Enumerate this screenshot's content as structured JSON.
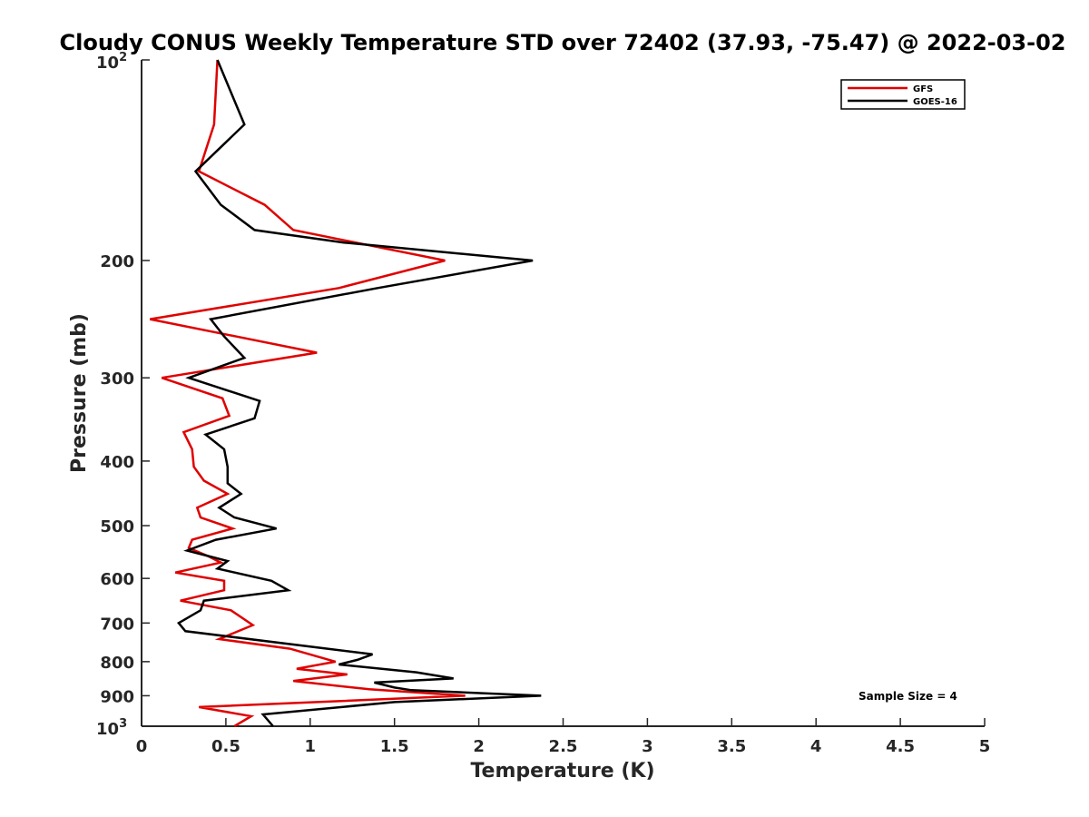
{
  "chart_data": {
    "type": "line",
    "title": "Cloudy CONUS Weekly Temperature STD over 72402 (37.93, -75.47) @ 2022-03-02",
    "xlabel": "Temperature (K)",
    "ylabel": "Pressure (mb)",
    "xlim": [
      0,
      5
    ],
    "ylim": [
      100,
      1000
    ],
    "y_scale": "log",
    "y_reversed": true,
    "x_ticks": [
      0,
      0.5,
      1,
      1.5,
      2,
      2.5,
      3,
      3.5,
      4,
      4.5,
      5
    ],
    "x_tick_labels": [
      "0",
      "0.5",
      "1",
      "1.5",
      "2",
      "2.5",
      "3",
      "3.5",
      "4",
      "4.5",
      "5"
    ],
    "y_ticks": [
      200,
      300,
      400,
      500,
      600,
      700,
      800,
      900
    ],
    "y_tick_labels": [
      "200",
      "300",
      "400",
      "500",
      "600",
      "700",
      "800",
      "900"
    ],
    "y_top_label": {
      "base": "10",
      "exp": "2"
    },
    "y_bottom_label": {
      "base": "10",
      "exp": "3"
    },
    "grid": false,
    "legend_position": "top-right",
    "annotation": "Sample Size = 4",
    "series": [
      {
        "name": "GFS",
        "color": "#e00000",
        "points": [
          [
            0.45,
            100
          ],
          [
            0.43,
            125
          ],
          [
            0.34,
            147
          ],
          [
            0.73,
            165
          ],
          [
            0.9,
            180
          ],
          [
            1.8,
            200
          ],
          [
            1.17,
            220
          ],
          [
            0.05,
            245
          ],
          [
            1.04,
            275
          ],
          [
            0.12,
            300
          ],
          [
            0.48,
            322
          ],
          [
            0.52,
            342
          ],
          [
            0.25,
            362
          ],
          [
            0.3,
            384
          ],
          [
            0.31,
            408
          ],
          [
            0.37,
            428
          ],
          [
            0.51,
            448
          ],
          [
            0.33,
            470
          ],
          [
            0.35,
            486
          ],
          [
            0.54,
            505
          ],
          [
            0.3,
            525
          ],
          [
            0.28,
            540
          ],
          [
            0.39,
            555
          ],
          [
            0.47,
            568
          ],
          [
            0.2,
            588
          ],
          [
            0.49,
            605
          ],
          [
            0.49,
            625
          ],
          [
            0.23,
            648
          ],
          [
            0.53,
            670
          ],
          [
            0.66,
            705
          ],
          [
            0.46,
            740
          ],
          [
            0.88,
            765
          ],
          [
            1.15,
            800
          ],
          [
            0.92,
            820
          ],
          [
            1.22,
            836
          ],
          [
            0.9,
            855
          ],
          [
            1.35,
            880
          ],
          [
            1.92,
            900
          ],
          [
            0.34,
            936
          ],
          [
            0.65,
            966
          ],
          [
            0.55,
            1000
          ]
        ]
      },
      {
        "name": "GOES-16",
        "color": "#000000",
        "points": [
          [
            0.45,
            100
          ],
          [
            0.61,
            125
          ],
          [
            0.32,
            147
          ],
          [
            0.47,
            165
          ],
          [
            0.67,
            180
          ],
          [
            1.2,
            188
          ],
          [
            2.32,
            200
          ],
          [
            1.4,
            220
          ],
          [
            0.41,
            245
          ],
          [
            0.49,
            260
          ],
          [
            0.61,
            280
          ],
          [
            0.28,
            300
          ],
          [
            0.7,
            325
          ],
          [
            0.67,
            345
          ],
          [
            0.38,
            365
          ],
          [
            0.49,
            384
          ],
          [
            0.51,
            408
          ],
          [
            0.51,
            432
          ],
          [
            0.59,
            448
          ],
          [
            0.46,
            470
          ],
          [
            0.55,
            486
          ],
          [
            0.8,
            505
          ],
          [
            0.44,
            525
          ],
          [
            0.27,
            545
          ],
          [
            0.51,
            565
          ],
          [
            0.45,
            580
          ],
          [
            0.77,
            605
          ],
          [
            0.87,
            625
          ],
          [
            0.37,
            648
          ],
          [
            0.35,
            670
          ],
          [
            0.22,
            700
          ],
          [
            0.26,
            720
          ],
          [
            1.37,
            780
          ],
          [
            1.28,
            795
          ],
          [
            1.17,
            808
          ],
          [
            1.63,
            830
          ],
          [
            1.85,
            848
          ],
          [
            1.38,
            860
          ],
          [
            1.5,
            875
          ],
          [
            1.6,
            883
          ],
          [
            2.37,
            900
          ],
          [
            1.5,
            920
          ],
          [
            0.72,
            960
          ],
          [
            0.78,
            1000
          ]
        ]
      }
    ]
  }
}
